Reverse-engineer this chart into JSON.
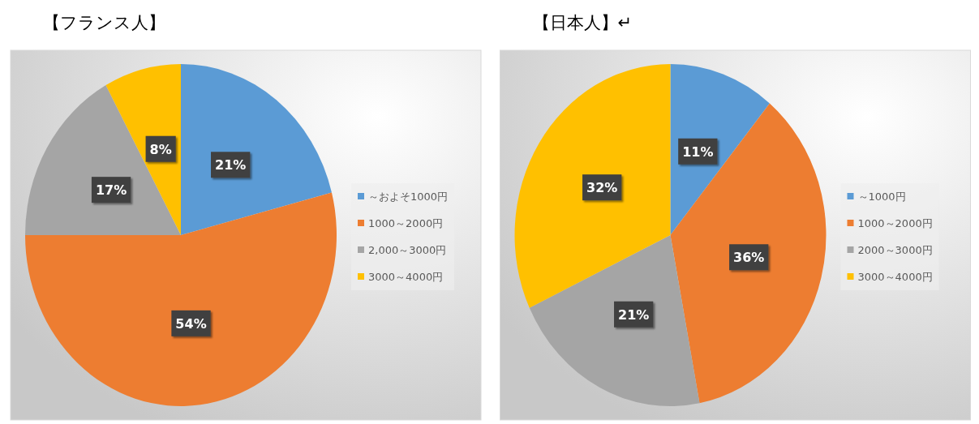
{
  "chart_data": [
    {
      "type": "pie",
      "title": "【フランス人】",
      "categories": [
        "～およそ1000円",
        "1000～2000円",
        "2,000～3000円",
        "3000～4000円"
      ],
      "values": [
        21,
        54,
        17,
        8
      ],
      "colors": [
        "#5b9bd5",
        "#ed7d31",
        "#a5a5a5",
        "#ffc000"
      ],
      "value_labels": [
        "21%",
        "54%",
        "17%",
        "8%"
      ],
      "legend": "right"
    },
    {
      "type": "pie",
      "title": "【日本人】↵",
      "categories": [
        "～1000円",
        "1000～2000円",
        "2000～3000円",
        "3000～4000円"
      ],
      "values": [
        11,
        36,
        21,
        32
      ],
      "colors": [
        "#5b9bd5",
        "#ed7d31",
        "#a5a5a5",
        "#ffc000"
      ],
      "value_labels": [
        "11%",
        "36%",
        "21%",
        "32%"
      ],
      "legend": "right"
    }
  ]
}
